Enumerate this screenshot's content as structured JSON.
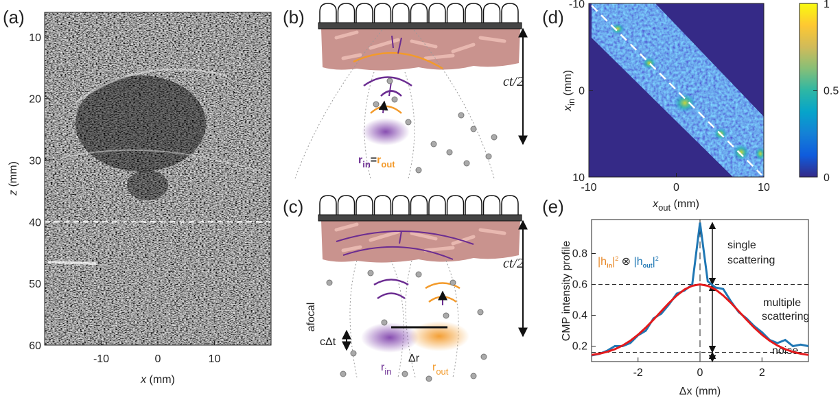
{
  "panel_labels": [
    "(a)",
    "(b)",
    "(c)",
    "(d)",
    "(e)"
  ],
  "chart_data": [
    {
      "type": "image",
      "xlabel": [
        "x",
        " (mm)"
      ],
      "ylabel": [
        "z",
        " (mm)"
      ],
      "xlim": [
        -20,
        20
      ],
      "ylim": [
        6,
        60
      ],
      "xticks": [
        -10,
        0,
        10
      ],
      "yticks": [
        10,
        20,
        30,
        40,
        50,
        60
      ],
      "hline": 40
    },
    {
      "type": "heatmap",
      "xlabel": [
        "x",
        "out",
        " (mm)"
      ],
      "ylabel": [
        "x",
        "in",
        " (mm)"
      ],
      "xlim": [
        -10,
        10
      ],
      "ylim": [
        -10,
        10
      ],
      "xticks": [
        -10,
        0,
        10
      ],
      "yticks": [
        -10,
        0,
        10
      ],
      "clim": [
        0,
        1
      ],
      "cticks": [
        0,
        0.5,
        1
      ],
      "colormap": [
        "#352a87",
        "#0f5cdd",
        "#1481d6",
        "#06a4ca",
        "#2eb7a4",
        "#87bf77",
        "#d1bb59",
        "#fec832",
        "#f9fb0e"
      ]
    },
    {
      "type": "line",
      "xlabel": "Δx (mm)",
      "ylabel": "CMP intensity profile",
      "x": [
        -3.5,
        -3.25,
        -3,
        -2.75,
        -2.5,
        -2.25,
        -2,
        -1.75,
        -1.5,
        -1.25,
        -1,
        -0.75,
        -0.5,
        -0.25,
        0,
        0.25,
        0.5,
        0.75,
        1,
        1.25,
        1.5,
        1.75,
        2,
        2.25,
        2.5,
        2.75,
        3,
        3.25,
        3.5
      ],
      "series": [
        {
          "color": "#1f77b4",
          "values": [
            0.14,
            0.15,
            0.17,
            0.2,
            0.2,
            0.22,
            0.27,
            0.3,
            0.38,
            0.41,
            0.47,
            0.54,
            0.56,
            0.6,
            1.0,
            0.62,
            0.58,
            0.57,
            0.49,
            0.42,
            0.38,
            0.33,
            0.29,
            0.24,
            0.22,
            0.24,
            0.2,
            0.21,
            0.2
          ]
        },
        {
          "color": "#e41a1c",
          "values": [
            0.143,
            0.151,
            0.163,
            0.18,
            0.204,
            0.235,
            0.274,
            0.32,
            0.372,
            0.426,
            0.48,
            0.528,
            0.567,
            0.591,
            0.6,
            0.591,
            0.567,
            0.528,
            0.48,
            0.426,
            0.372,
            0.32,
            0.274,
            0.235,
            0.204,
            0.18,
            0.163,
            0.151,
            0.143
          ]
        }
      ],
      "xlim": [
        -3.5,
        3.5
      ],
      "ylim": [
        0.1,
        1.02
      ],
      "xticks": [
        -2,
        0,
        2
      ],
      "yticks": [
        0.2,
        0.4,
        0.6,
        0.8
      ],
      "hlines": [
        0.6,
        0.16
      ],
      "vline": 0,
      "annotations": [
        "single",
        "scattering",
        "multiple",
        "scattering",
        "noise"
      ],
      "formula": [
        "|h",
        "in",
        "|",
        "2",
        " ⊗ ",
        "|h",
        "out",
        "|",
        "2"
      ]
    }
  ],
  "diagrams": {
    "b": {
      "depth": "ct/2",
      "r_in": [
        "r",
        "in"
      ],
      "equals": "=",
      "r_out": [
        "r",
        "out"
      ]
    },
    "c": {
      "depth": "ct/2",
      "afocal": "afocal",
      "spread_t": "cΔt",
      "spread_r": "Δr",
      "r_in": [
        "r",
        "in"
      ],
      "r_out": [
        "r",
        "out"
      ]
    }
  }
}
